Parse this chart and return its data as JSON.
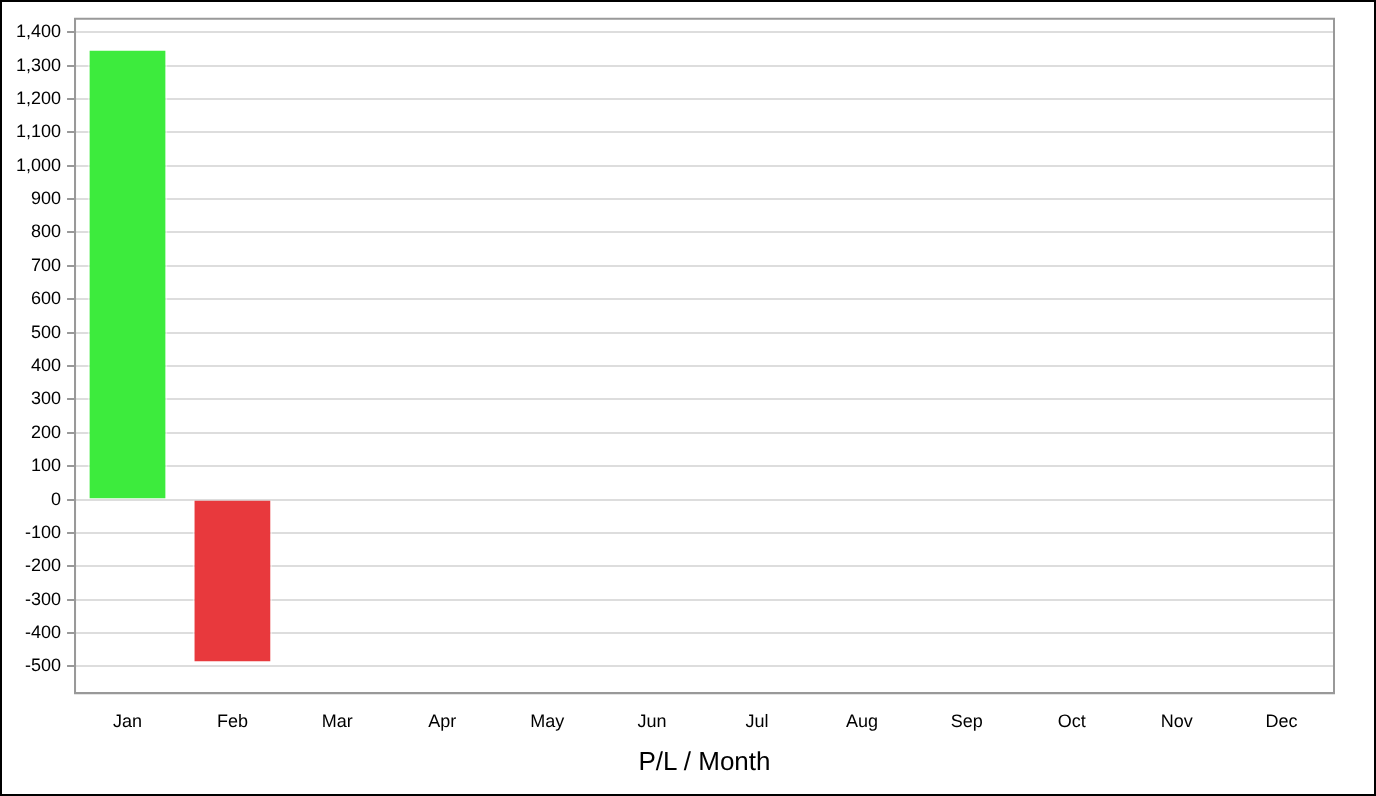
{
  "chart_data": {
    "type": "bar",
    "xlabel": "P/L / Month",
    "categories": [
      "Jan",
      "Feb",
      "Mar",
      "Apr",
      "May",
      "Jun",
      "Jul",
      "Aug",
      "Sep",
      "Oct",
      "Nov",
      "Dec"
    ],
    "values": [
      1350,
      -490,
      null,
      null,
      null,
      null,
      null,
      null,
      null,
      null,
      null,
      null
    ],
    "colors": [
      "#3deb3d",
      "#e8393d",
      null,
      null,
      null,
      null,
      null,
      null,
      null,
      null,
      null,
      null
    ],
    "ylim": [
      -580,
      1440
    ],
    "yticks": [
      -500,
      -400,
      -300,
      -200,
      -100,
      0,
      100,
      200,
      300,
      400,
      500,
      600,
      700,
      800,
      900,
      {
        "value": 1000,
        "label": "1,000"
      },
      {
        "value": 1100,
        "label": "1,100"
      },
      {
        "value": 1200,
        "label": "1,200"
      },
      {
        "value": 1300,
        "label": "1,300"
      },
      {
        "value": 1400,
        "label": "1,400"
      }
    ],
    "grid": "y",
    "legend": false
  }
}
